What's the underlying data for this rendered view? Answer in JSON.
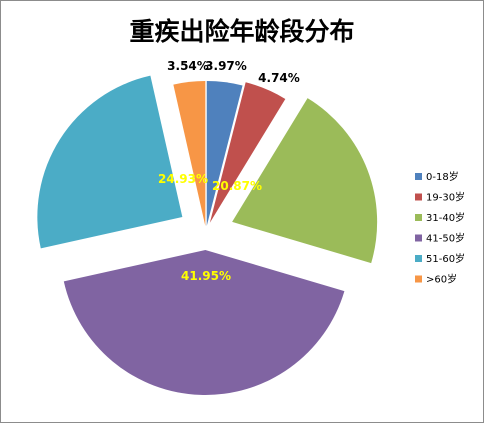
{
  "chart_data": {
    "type": "pie",
    "title": "重疾出险年龄段分布",
    "exploded": true,
    "legend_position": "right",
    "slices": [
      {
        "name": "0-18岁",
        "value": 3.97,
        "label": "3.97%",
        "color": "#4f81bd",
        "label_color": "#000000"
      },
      {
        "name": "19-30岁",
        "value": 4.74,
        "label": "4.74%",
        "color": "#c0504d",
        "label_color": "#000000"
      },
      {
        "name": "31-40岁",
        "value": 20.87,
        "label": "20.87%",
        "color": "#9bbb59",
        "label_color": "#ffff00"
      },
      {
        "name": "41-50岁",
        "value": 41.95,
        "label": "41.95%",
        "color": "#8064a2",
        "label_color": "#ffff00"
      },
      {
        "name": "51-60岁",
        "value": 24.93,
        "label": "24.93%",
        "color": "#4bacc6",
        "label_color": "#ffff00"
      },
      {
        "name": ">60岁",
        "value": 3.54,
        "label": "3.54%",
        "color": "#f79646",
        "label_color": "#000000"
      }
    ]
  }
}
